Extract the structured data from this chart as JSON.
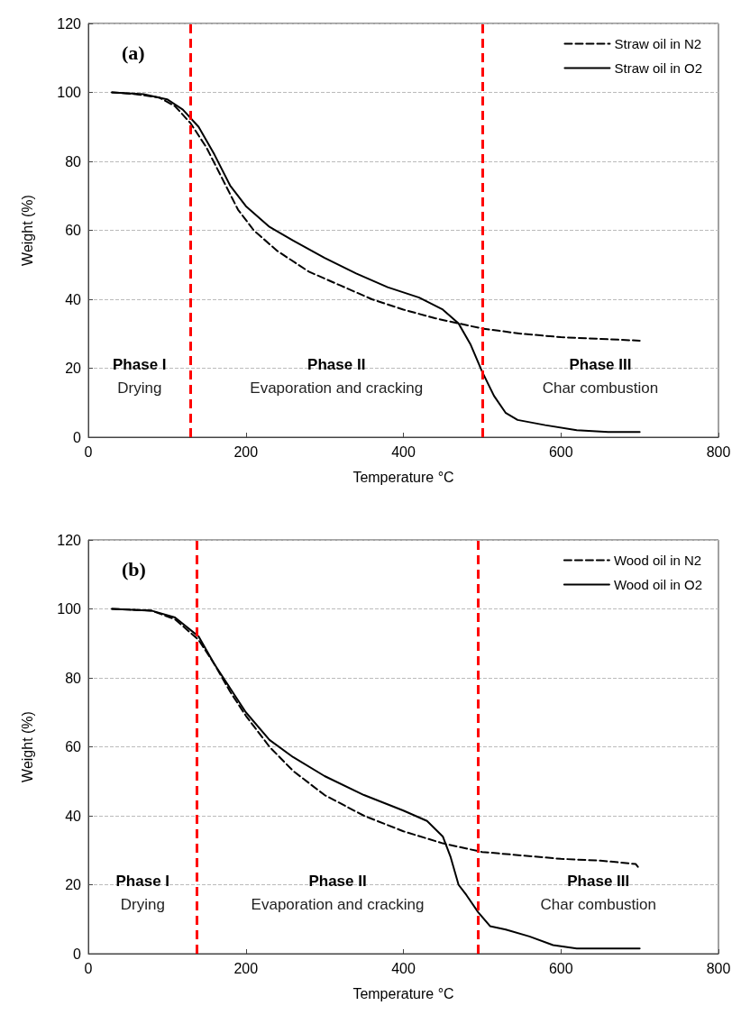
{
  "chart_data": [
    {
      "type": "line",
      "title": "(a)",
      "xlabel": "Temperature °C",
      "ylabel": "Weight (%)",
      "xlim": [
        0,
        800
      ],
      "xticks": [
        0,
        200,
        400,
        600,
        800
      ],
      "ylim": [
        0,
        120
      ],
      "yticks": [
        0,
        20,
        40,
        60,
        80,
        100,
        120
      ],
      "grid": "y",
      "legend": "top right",
      "marker": "none",
      "series": [
        {
          "name": "Straw oil in N2",
          "color": "#000000",
          "line_style": "dashed",
          "x": [
            30,
            60,
            90,
            110,
            130,
            150,
            170,
            190,
            210,
            240,
            280,
            320,
            360,
            400,
            440,
            470,
            500,
            550,
            600,
            650,
            700
          ],
          "values": [
            100,
            99.5,
            98.5,
            96,
            91,
            84,
            75,
            66,
            60,
            54,
            48,
            44,
            40,
            37,
            34.5,
            33,
            31.5,
            30,
            29,
            28.5,
            28
          ]
        },
        {
          "name": "Straw oil in O2",
          "color": "#000000",
          "line_style": "solid",
          "x": [
            30,
            70,
            100,
            120,
            140,
            160,
            180,
            200,
            230,
            260,
            300,
            340,
            380,
            420,
            450,
            470,
            485,
            500,
            515,
            530,
            545,
            580,
            620,
            660,
            700
          ],
          "values": [
            100,
            99.5,
            98,
            95,
            90,
            82,
            73,
            67,
            61,
            57,
            52,
            47.5,
            43.5,
            40.5,
            37,
            33,
            27,
            19,
            12,
            7,
            5,
            3.5,
            2,
            1.5,
            1.5
          ]
        }
      ],
      "ref_lines": [
        {
          "axis": "x",
          "value": 130,
          "color": "#ff0000",
          "line_style": "dashed"
        },
        {
          "axis": "x",
          "value": 500,
          "color": "#ff0000",
          "line_style": "dashed"
        }
      ],
      "annotations": [
        "Phase I\nDrying",
        "Phase II\nEvaporation and cracking",
        "Phase III\nChar combustion"
      ]
    },
    {
      "type": "line",
      "title": "(b)",
      "xlabel": "Temperature °C",
      "ylabel": "Weight (%)",
      "xlim": [
        0,
        800
      ],
      "xticks": [
        0,
        200,
        400,
        600,
        800
      ],
      "ylim": [
        0,
        120
      ],
      "yticks": [
        0,
        20,
        40,
        60,
        80,
        100,
        120
      ],
      "grid": "y",
      "legend": "top right",
      "marker": "none",
      "series": [
        {
          "name": "Wood oil in N2",
          "color": "#000000",
          "line_style": "dashed",
          "x": [
            30,
            80,
            110,
            140,
            160,
            180,
            200,
            230,
            260,
            300,
            350,
            400,
            450,
            500,
            550,
            600,
            650,
            695,
            700
          ],
          "values": [
            100,
            99.5,
            97,
            91,
            84,
            76,
            69,
            60,
            53,
            46,
            40,
            35.5,
            32,
            29.5,
            28.5,
            27.5,
            27,
            26,
            24.5
          ]
        },
        {
          "name": "Wood oil in O2",
          "color": "#000000",
          "line_style": "solid",
          "x": [
            30,
            80,
            110,
            140,
            160,
            180,
            200,
            230,
            260,
            300,
            350,
            400,
            430,
            450,
            460,
            470,
            480,
            495,
            510,
            530,
            560,
            590,
            620,
            660,
            700
          ],
          "values": [
            100,
            99.5,
            97.5,
            92,
            84,
            77,
            70,
            62,
            57,
            51.5,
            46,
            41.5,
            38.5,
            34,
            28,
            20,
            17,
            12,
            8,
            7,
            5,
            2.5,
            1.5,
            1.5,
            1.5
          ]
        }
      ],
      "ref_lines": [
        {
          "axis": "x",
          "value": 138,
          "color": "#ff0000",
          "line_style": "dashed"
        },
        {
          "axis": "x",
          "value": 495,
          "color": "#ff0000",
          "line_style": "dashed"
        }
      ],
      "annotations": [
        "Phase I\nDrying",
        "Phase II\nEvaporation and cracking",
        "Phase III\nChar combustion"
      ]
    }
  ]
}
